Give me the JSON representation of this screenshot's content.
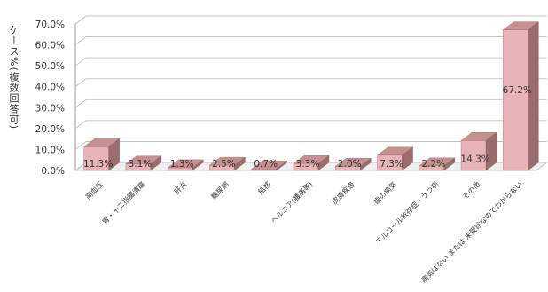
{
  "chart_data": {
    "type": "bar",
    "ylabel": "ケース%(複数回答可)",
    "ylim": [
      0,
      70
    ],
    "yticks": [
      "0.0%",
      "10.0%",
      "20.0%",
      "30.0%",
      "40.0%",
      "50.0%",
      "60.0%",
      "70.0%"
    ],
    "categories": [
      "高血圧",
      "胃・十二指腸潰瘍",
      "肝炎",
      "糖尿病",
      "結核",
      "ヘルニア(腰痛等)",
      "皮膚疾患",
      "歯の病気",
      "アルコール依存症・うつ病",
      "その他",
      "病気はない または 未受診なのでわからない"
    ],
    "values": [
      11.3,
      3.1,
      1.3,
      2.5,
      0.7,
      3.3,
      2.0,
      7.3,
      2.2,
      14.3,
      67.2
    ],
    "value_labels": [
      "11.3%",
      "3.1%",
      "1.3%",
      "2.5%",
      "0.7%",
      "3.3%",
      "2.0%",
      "7.3%",
      "2.2%",
      "14.3%",
      "67.2%"
    ],
    "grid": true,
    "legend": "none",
    "colors": {
      "bar_front": "#e8b4b8",
      "bar_top": "#c59090",
      "bar_side": "#9c6c6c"
    }
  }
}
